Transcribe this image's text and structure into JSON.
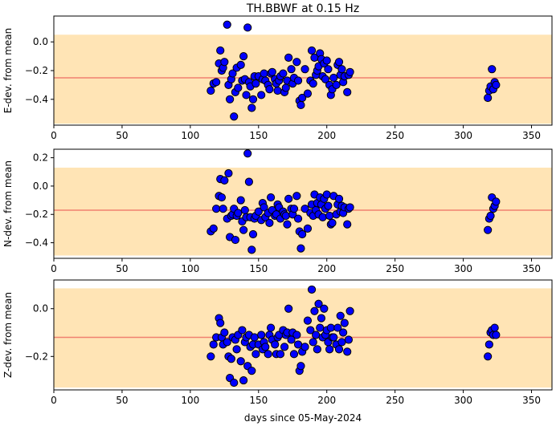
{
  "title": "TH.BBWF at 0.15 Hz",
  "xlabel": "days since 05-May-2024",
  "colors": {
    "band": "#ffe4b5",
    "mean_line": "#f08070",
    "marker_face": "#0000ff",
    "marker_edge": "#000000"
  },
  "chart_data": [
    {
      "type": "scatter",
      "ylabel": "E-dev. from mean",
      "xlim": [
        0,
        365
      ],
      "ylim": [
        -0.58,
        0.18
      ],
      "xticks": [
        "0",
        "50",
        "100",
        "150",
        "200",
        "250",
        "300",
        "350"
      ],
      "yticks": [
        "0.0",
        "−0.2",
        "−0.4"
      ],
      "ytick_values": [
        0.0,
        -0.2,
        -0.4
      ],
      "band": [
        -0.57,
        0.05
      ],
      "mean": -0.25,
      "x": [
        115,
        117,
        119,
        121,
        122,
        123,
        124,
        125,
        127,
        128,
        129,
        130,
        131,
        132,
        133,
        134,
        135,
        137,
        138,
        139,
        140,
        141,
        142,
        143,
        144,
        145,
        146,
        147,
        148,
        150,
        152,
        153,
        154,
        155,
        157,
        158,
        159,
        160,
        162,
        163,
        164,
        165,
        166,
        168,
        169,
        170,
        171,
        172,
        174,
        175,
        176,
        178,
        179,
        180,
        181,
        182,
        184,
        186,
        188,
        189,
        190,
        191,
        192,
        193,
        194,
        195,
        196,
        197,
        198,
        199,
        200,
        201,
        202,
        203,
        204,
        205,
        207,
        208,
        209,
        210,
        211,
        212,
        213,
        215,
        216,
        217,
        318,
        319,
        320,
        321,
        322,
        323,
        324
      ],
      "y": [
        -0.34,
        -0.29,
        -0.28,
        -0.15,
        -0.06,
        -0.2,
        -0.18,
        -0.14,
        0.12,
        -0.3,
        -0.4,
        -0.26,
        -0.22,
        -0.52,
        -0.35,
        -0.18,
        -0.32,
        -0.16,
        -0.27,
        -0.1,
        -0.26,
        -0.37,
        0.1,
        -0.28,
        -0.31,
        -0.46,
        -0.4,
        -0.24,
        -0.29,
        -0.24,
        -0.37,
        -0.26,
        -0.22,
        -0.27,
        -0.3,
        -0.33,
        -0.22,
        -0.21,
        -0.26,
        -0.29,
        -0.34,
        -0.27,
        -0.24,
        -0.22,
        -0.35,
        -0.32,
        -0.27,
        -0.11,
        -0.19,
        -0.29,
        -0.25,
        -0.14,
        -0.27,
        -0.41,
        -0.44,
        -0.39,
        -0.19,
        -0.36,
        -0.27,
        -0.06,
        -0.29,
        -0.11,
        -0.23,
        -0.2,
        -0.17,
        -0.08,
        -0.12,
        -0.24,
        -0.15,
        -0.26,
        -0.13,
        -0.19,
        -0.3,
        -0.37,
        -0.33,
        -0.25,
        -0.3,
        -0.16,
        -0.14,
        -0.23,
        -0.19,
        -0.28,
        -0.24,
        -0.35,
        -0.23,
        -0.21,
        -0.39,
        -0.34,
        -0.31,
        -0.19,
        -0.33,
        -0.28,
        -0.3
      ]
    },
    {
      "type": "scatter",
      "ylabel": "N-dev. from mean",
      "xlim": [
        0,
        365
      ],
      "ylim": [
        -0.51,
        0.26
      ],
      "xticks": [
        "0",
        "50",
        "100",
        "150",
        "200",
        "250",
        "300",
        "350"
      ],
      "yticks": [
        "0.2",
        "0.0",
        "−0.2",
        "−0.4"
      ],
      "ytick_values": [
        0.2,
        0.0,
        -0.2,
        -0.4
      ],
      "band": [
        -0.49,
        0.13
      ],
      "mean": -0.17,
      "x": [
        115,
        117,
        119,
        121,
        122,
        123,
        124,
        125,
        127,
        128,
        129,
        130,
        131,
        132,
        133,
        134,
        135,
        137,
        138,
        139,
        140,
        141,
        142,
        143,
        144,
        145,
        146,
        147,
        148,
        150,
        152,
        153,
        154,
        155,
        157,
        158,
        159,
        160,
        162,
        163,
        164,
        165,
        166,
        168,
        169,
        170,
        171,
        172,
        174,
        175,
        176,
        178,
        179,
        180,
        181,
        182,
        184,
        186,
        188,
        189,
        190,
        191,
        192,
        193,
        194,
        195,
        196,
        197,
        198,
        199,
        200,
        201,
        202,
        203,
        204,
        205,
        207,
        208,
        209,
        210,
        211,
        212,
        213,
        215,
        216,
        217,
        318,
        319,
        320,
        321,
        322,
        323,
        324
      ],
      "y": [
        -0.32,
        -0.3,
        -0.16,
        -0.07,
        0.05,
        -0.08,
        -0.16,
        0.04,
        -0.23,
        0.09,
        -0.36,
        -0.21,
        -0.2,
        -0.16,
        -0.38,
        -0.21,
        -0.19,
        -0.1,
        -0.25,
        -0.31,
        -0.17,
        -0.22,
        0.23,
        0.03,
        -0.22,
        -0.45,
        -0.34,
        -0.23,
        -0.21,
        -0.18,
        -0.24,
        -0.12,
        -0.15,
        -0.22,
        -0.19,
        -0.26,
        -0.08,
        -0.17,
        -0.21,
        -0.2,
        -0.13,
        -0.15,
        -0.23,
        -0.18,
        -0.2,
        -0.21,
        -0.27,
        -0.09,
        -0.16,
        -0.2,
        -0.16,
        -0.07,
        -0.23,
        -0.32,
        -0.44,
        -0.34,
        -0.16,
        -0.3,
        -0.19,
        -0.13,
        -0.21,
        -0.06,
        -0.17,
        -0.12,
        -0.2,
        -0.08,
        -0.13,
        -0.22,
        -0.09,
        -0.16,
        -0.06,
        -0.14,
        -0.21,
        -0.27,
        -0.26,
        -0.07,
        -0.2,
        -0.13,
        -0.09,
        -0.18,
        -0.14,
        -0.19,
        -0.15,
        -0.27,
        -0.16,
        -0.15,
        -0.31,
        -0.23,
        -0.21,
        -0.08,
        -0.16,
        -0.14,
        -0.11
      ]
    },
    {
      "type": "scatter",
      "ylabel": "Z-dev. from mean",
      "xlim": [
        0,
        365
      ],
      "ylim": [
        -0.34,
        0.12
      ],
      "xticks": [
        "0",
        "50",
        "100",
        "150",
        "200",
        "250",
        "300",
        "350"
      ],
      "yticks": [
        "0.0",
        "−0.2"
      ],
      "ytick_values": [
        0.0,
        -0.2
      ],
      "band": [
        -0.33,
        0.085
      ],
      "mean": -0.12,
      "x": [
        115,
        117,
        119,
        121,
        122,
        123,
        124,
        125,
        127,
        128,
        129,
        130,
        131,
        132,
        133,
        134,
        135,
        137,
        138,
        139,
        140,
        141,
        142,
        143,
        144,
        145,
        146,
        147,
        148,
        150,
        152,
        153,
        154,
        155,
        157,
        158,
        159,
        160,
        162,
        163,
        164,
        165,
        166,
        168,
        169,
        170,
        171,
        172,
        174,
        175,
        176,
        178,
        179,
        180,
        181,
        182,
        184,
        186,
        188,
        189,
        190,
        191,
        192,
        193,
        194,
        195,
        196,
        197,
        198,
        199,
        200,
        201,
        202,
        203,
        204,
        205,
        207,
        208,
        209,
        210,
        211,
        212,
        213,
        215,
        216,
        217,
        318,
        319,
        320,
        321,
        322,
        323,
        324
      ],
      "y": [
        -0.2,
        -0.15,
        -0.12,
        -0.04,
        -0.06,
        -0.12,
        -0.15,
        -0.1,
        -0.14,
        -0.2,
        -0.29,
        -0.21,
        -0.12,
        -0.31,
        -0.13,
        -0.17,
        -0.11,
        -0.22,
        -0.09,
        -0.3,
        -0.14,
        -0.12,
        -0.24,
        -0.11,
        -0.16,
        -0.26,
        -0.15,
        -0.12,
        -0.19,
        -0.15,
        -0.11,
        -0.17,
        -0.14,
        -0.16,
        -0.19,
        -0.11,
        -0.08,
        -0.13,
        -0.15,
        -0.19,
        -0.12,
        -0.11,
        -0.19,
        -0.09,
        -0.16,
        -0.11,
        -0.1,
        0.0,
        -0.13,
        -0.1,
        -0.19,
        -0.11,
        -0.15,
        -0.26,
        -0.24,
        -0.18,
        -0.16,
        -0.05,
        -0.09,
        0.08,
        -0.14,
        -0.01,
        -0.11,
        -0.17,
        0.02,
        -0.08,
        -0.04,
        -0.12,
        0.0,
        -0.11,
        -0.09,
        -0.14,
        -0.17,
        -0.08,
        -0.12,
        -0.12,
        -0.15,
        -0.08,
        -0.17,
        -0.03,
        -0.14,
        -0.1,
        -0.06,
        -0.18,
        -0.13,
        -0.01,
        -0.2,
        -0.15,
        -0.1,
        -0.09,
        -0.11,
        -0.08,
        -0.11
      ]
    }
  ]
}
